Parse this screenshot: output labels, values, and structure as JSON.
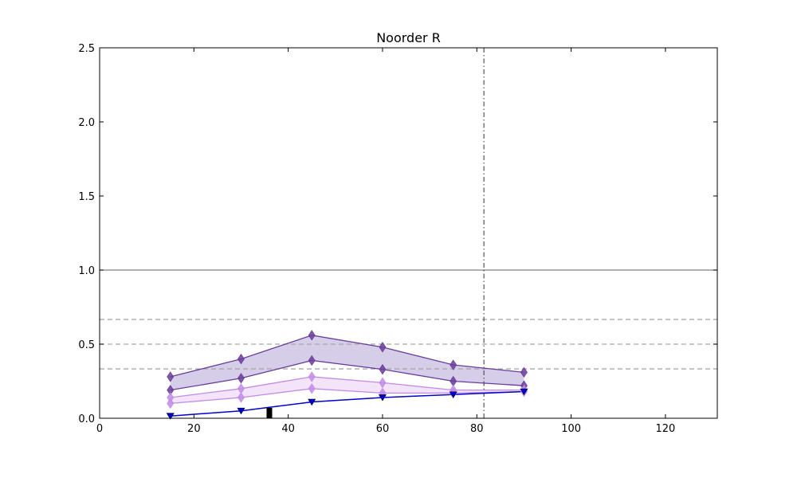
{
  "chart_data": {
    "type": "line",
    "title": "Noorder R",
    "xlabel": "",
    "ylabel": "",
    "xlim": [
      0,
      131
    ],
    "ylim": [
      0,
      2.5
    ],
    "xticks": [
      "0",
      "20",
      "40",
      "60",
      "80",
      "100",
      "120"
    ],
    "yticks": [
      "0.0",
      "0.5",
      "1.0",
      "1.5",
      "2.0",
      "2.5"
    ],
    "grid": false,
    "reference_lines": {
      "solid_y": [
        1.0
      ],
      "dashed_y": [
        0.667,
        0.5,
        0.333
      ],
      "dashdot_x": [
        81.5
      ]
    },
    "x": [
      15,
      30,
      45,
      60,
      75,
      90
    ],
    "bands": [
      {
        "color": "#6a3d9a",
        "fill": "#d4cbe8",
        "upper": [
          0.28,
          0.4,
          0.56,
          0.48,
          0.36,
          0.31
        ],
        "lower": [
          0.19,
          0.27,
          0.39,
          0.33,
          0.25,
          0.22
        ]
      },
      {
        "color": "#c18ce6",
        "fill": "#f2e3fa",
        "upper": [
          0.14,
          0.2,
          0.28,
          0.24,
          0.19,
          0.19
        ],
        "lower": [
          0.1,
          0.14,
          0.2,
          0.17,
          0.17,
          0.18
        ]
      }
    ],
    "series": [
      {
        "color": "#0000cc",
        "marker": "triangle-down",
        "values": [
          0.015,
          0.05,
          0.11,
          0.14,
          0.16,
          0.18
        ]
      }
    ],
    "bar_marker": {
      "x": 36,
      "height": 0.07,
      "color": "#000000"
    }
  }
}
